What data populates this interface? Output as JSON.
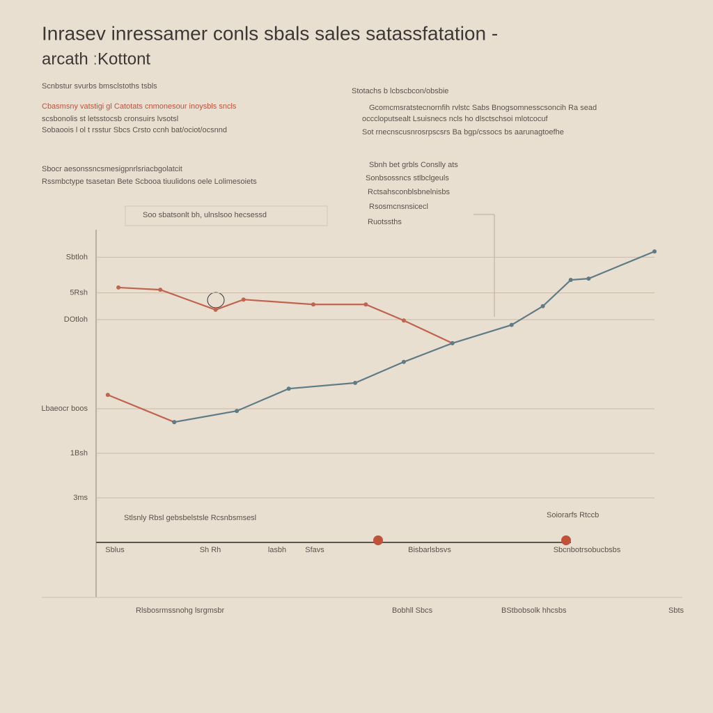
{
  "chart_data": {
    "type": "line",
    "title": "Inrasev inressamer conls sbals sales  satassfatation -",
    "subtitle": "arcath ːKottont",
    "annotations": [
      "Scnbstur svurbs bmsclstoths tsbls",
      "Cbasmsny vatstigi gl Catotats cnmonesour inoysbls sncls",
      "scsbonolis st letsstocsb cronsuirs lvsotsl",
      "Sobaoois l ol t rsstur Sbcs Crsto ccnh bat/ociot/ocsnnd",
      "Sbocr aesonssncsmesigpnrlsriacbgolatcit",
      "Rssmbctype tsasetan Bete Scbooa tiuulidons oele Lolimesoiets",
      "Soo sbatsonlt bh, ulnslsoo hecsessd",
      "Stotachs b lcbscbcon/obsbie",
      "Gcomcmsratstecnornfih rvlstc Sabs Bnogsomnesscsoncih Ra sead",
      "occcloputsealt Lsuisnecs ncls ho dlsctschsoi mlotcocuf",
      "Sot rnecnscusnrosrpscsrs Ba bgp/cssocs bs aarunagtoefhe",
      "Sbnh bet grbls Conslly ats",
      "Sonbsossncs stlbclgeuls",
      "Rctsahsconblsbnelnisbs",
      "Rsosmcnsnsicecl",
      "Ruotssths",
      "Stlsnly Rbsl gebsbelstsle Rcsnbsmsesl",
      "Soiorarfs Rtccb",
      "Rlsbosrmssnohg lsrgmsbr",
      "Bobhll Sbcs",
      "BStbobsolk hhcsbs",
      "Sbts"
    ],
    "x_labels": [
      "Sblus",
      "Sh Rh",
      "lasbh",
      "Sfavs",
      "Bisbarlsbsvs",
      "Sbcnbotrsobucbsbs"
    ],
    "ylim": [
      0,
      7
    ],
    "yticks": [
      {
        "value": 1,
        "label": "3ms"
      },
      {
        "value": 2,
        "label": "1Bsh"
      },
      {
        "value": 3,
        "label": "Lbaeocr boos"
      },
      {
        "value": 5,
        "label": "DOtloh"
      },
      {
        "value": 5.6,
        "label": "5Rsh"
      },
      {
        "value": 6.4,
        "label": "Sbtloh"
      }
    ],
    "xlim": [
      0,
      100
    ],
    "grid": true,
    "series": [
      {
        "color": "#c0634f",
        "x": [
          2.1,
          14.0,
          null,
          4.0,
          11.5,
          21.4,
          26.4,
          38.9,
          48.3,
          55.1,
          63.8
        ],
        "values": [
          3.31,
          2.7,
          null,
          5.72,
          5.67,
          5.22,
          5.45,
          5.34,
          5.34,
          4.98,
          4.47
        ]
      },
      {
        "color": "#5f7b86",
        "x": [
          14.0,
          25.2,
          34.5,
          46.4,
          55.1,
          63.8,
          74.4,
          80.0,
          85.0,
          88.2,
          100
        ],
        "values": [
          2.7,
          2.95,
          3.45,
          3.58,
          4.05,
          4.47,
          4.88,
          5.3,
          5.89,
          5.92,
          6.53
        ]
      }
    ]
  }
}
